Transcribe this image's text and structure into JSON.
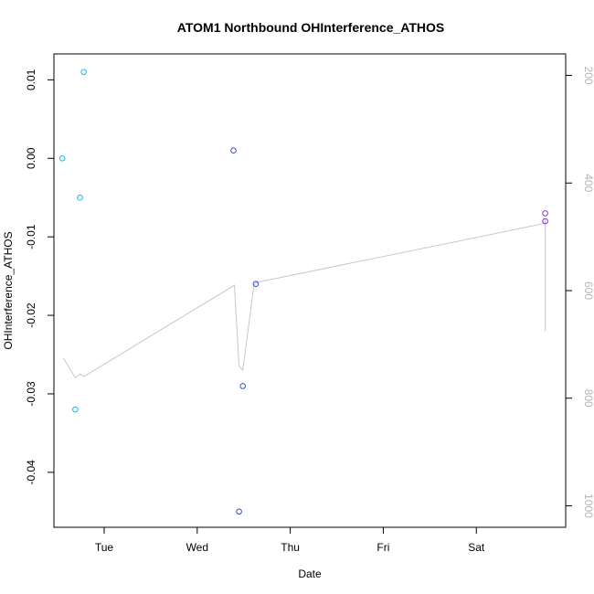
{
  "chart_data": {
    "type": "scatter",
    "title": "ATOM1 Northbound OHInterference_ATHOS",
    "xlabel": "Date",
    "ylabel": "OHInterference_ATHOS",
    "x_ticks": [
      "Tue",
      "Wed",
      "Thu",
      "Fri",
      "Sat"
    ],
    "x_domain_days": [
      -0.54,
      4.96
    ],
    "y_left": {
      "ylim": [
        -0.047,
        0.0133
      ],
      "ticks": [
        0.01,
        0.0,
        -0.01,
        -0.02,
        -0.03,
        -0.04
      ],
      "tick_labels": [
        "0.01",
        "0.00",
        "-0.01",
        "-0.02",
        "-0.03",
        "-0.04"
      ]
    },
    "y_right": {
      "ylim": [
        1040,
        160
      ],
      "ticks": [
        200,
        400,
        600,
        800,
        1000
      ],
      "tick_labels": [
        "200",
        "400",
        "600",
        "800",
        "1000"
      ],
      "color": "#b5b5b5"
    },
    "series": [
      {
        "color": "#1ab8e8",
        "points": [
          [
            -0.45,
            0.0
          ],
          [
            -0.31,
            -0.032
          ],
          [
            -0.26,
            -0.005
          ],
          [
            -0.22,
            0.011
          ]
        ]
      },
      {
        "color": "#2d50d0",
        "points": [
          [
            1.39,
            0.001
          ],
          [
            1.45,
            -0.045
          ],
          [
            1.49,
            -0.029
          ],
          [
            1.63,
            -0.016
          ]
        ]
      },
      {
        "color": "#8a2be2",
        "points": [
          [
            4.74,
            -0.007
          ],
          [
            4.74,
            -0.008
          ]
        ]
      }
    ],
    "line_series": {
      "color": "#c8c8c8",
      "axis": "right",
      "points": [
        [
          -0.44,
          725
        ],
        [
          -0.31,
          762
        ],
        [
          -0.26,
          755
        ],
        [
          -0.22,
          760
        ],
        [
          1.4,
          590
        ],
        [
          1.45,
          740
        ],
        [
          1.49,
          748
        ],
        [
          1.61,
          590
        ],
        [
          1.63,
          585
        ],
        [
          4.74,
          475
        ],
        [
          4.74,
          468
        ],
        [
          4.74,
          675
        ]
      ]
    }
  }
}
